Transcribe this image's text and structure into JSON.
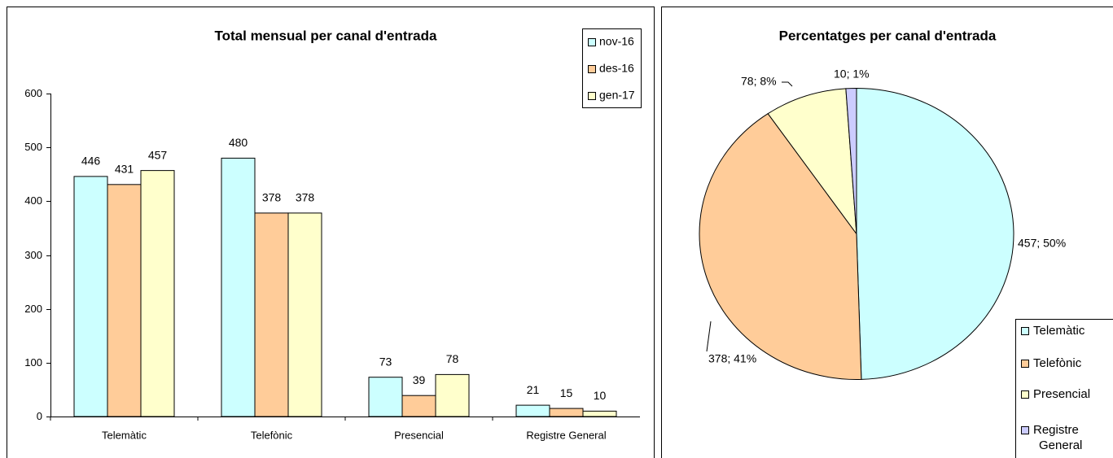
{
  "chart_data": [
    {
      "type": "bar",
      "title": "Total mensual per canal d'entrada",
      "categories": [
        "Telemàtic",
        "Telefònic",
        "Presencial",
        "Registre General"
      ],
      "series": [
        {
          "name": "nov-16",
          "color": "#ccffff",
          "values": [
            446,
            480,
            73,
            21
          ]
        },
        {
          "name": "des-16",
          "color": "#ffcc99",
          "values": [
            431,
            378,
            39,
            15
          ]
        },
        {
          "name": "gen-17",
          "color": "#ffffcc",
          "values": [
            457,
            378,
            78,
            10
          ]
        }
      ],
      "ylim": [
        0,
        600
      ],
      "yticks": [
        0,
        100,
        200,
        300,
        400,
        500,
        600
      ],
      "grid": false,
      "legend": "top-right"
    },
    {
      "type": "pie",
      "title": "Percentatges per canal d'entrada",
      "categories": [
        "Telemàtic",
        "Telefònic",
        "Presencial",
        "Registre General"
      ],
      "values": [
        457,
        378,
        78,
        10
      ],
      "value_labels": [
        "457; 50%",
        "378; 41%",
        "78; 8%",
        "10; 1%"
      ],
      "colors": [
        "#ccffff",
        "#ffcc99",
        "#ffffcc",
        "#ccccff"
      ],
      "legend": "bottom-right"
    }
  ]
}
